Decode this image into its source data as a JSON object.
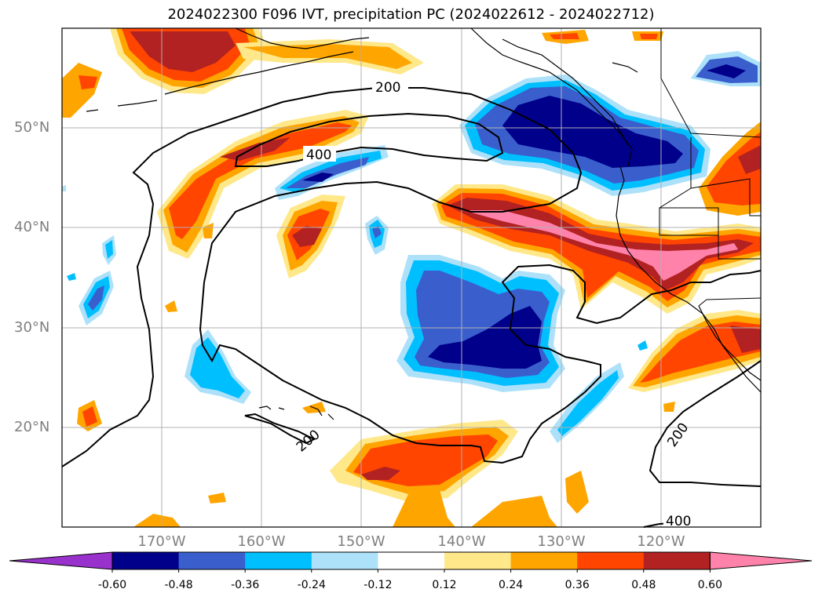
{
  "title": "2024022300 F096 IVT, precipitation PC (2024022612 - 2024022712)",
  "lat_labels": [
    "50°N",
    "40°N",
    "30°N",
    "20°N"
  ],
  "lon_labels": [
    "170°W",
    "160°W",
    "150°W",
    "140°W",
    "130°W",
    "120°W"
  ],
  "contour_labels": [
    "200",
    "400",
    "200",
    "200",
    "400"
  ],
  "colorbar": {
    "ticks": [
      "-0.60",
      "-0.48",
      "-0.36",
      "-0.24",
      "-0.12",
      "0.12",
      "0.24",
      "0.36",
      "0.48",
      "0.60"
    ],
    "colors": [
      "#9932CC",
      "#00008B",
      "#3A5FCD",
      "#00BFFF",
      "#ADE1FA",
      "#FFFFFF",
      "#FFE88A",
      "#FFA500",
      "#FF4500",
      "#B22222",
      "#FF82AB"
    ]
  },
  "colors": {
    "grid": "#b0b0b0",
    "contour": "#000000"
  }
}
